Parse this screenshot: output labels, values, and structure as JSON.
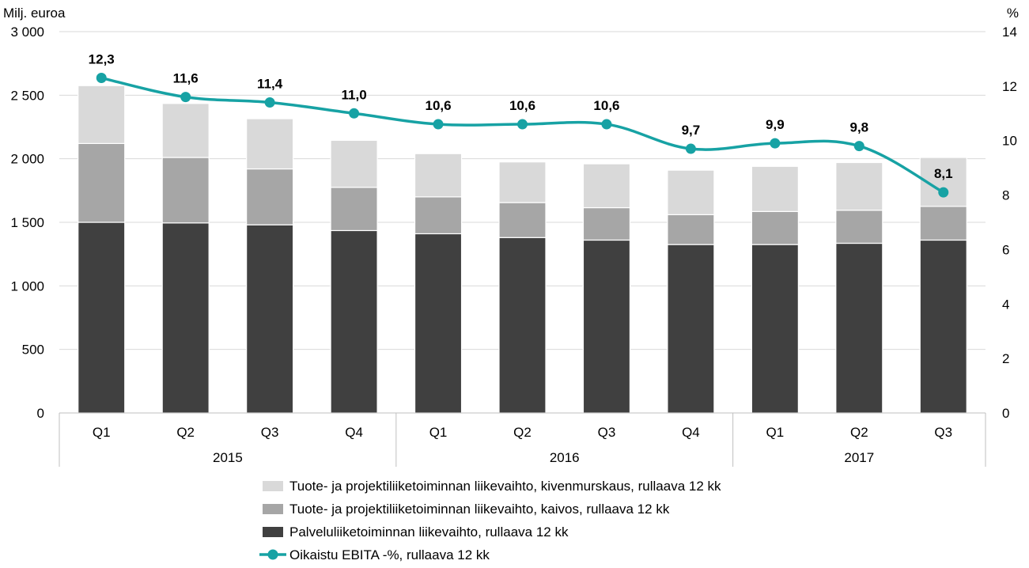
{
  "chart_data": {
    "type": "bar",
    "stacked": true,
    "y_left_label": "Milj. euroa",
    "y_right_label": "%",
    "y_left_ticks": [
      "0",
      "500",
      "1 000",
      "1 500",
      "2 000",
      "2 500",
      "3 000"
    ],
    "y_right_ticks": [
      "0",
      "2",
      "4",
      "6",
      "8",
      "10",
      "12",
      "14"
    ],
    "ylim_left": [
      0,
      3000
    ],
    "ylim_right": [
      0,
      14
    ],
    "categories": [
      "Q1",
      "Q2",
      "Q3",
      "Q4",
      "Q1",
      "Q2",
      "Q3",
      "Q4",
      "Q1",
      "Q2",
      "Q3"
    ],
    "year_groups": [
      {
        "label": "2015",
        "count": 4
      },
      {
        "label": "2016",
        "count": 4
      },
      {
        "label": "2017",
        "count": 3
      }
    ],
    "series": [
      {
        "name": "Palveluliiketoiminnan liikevaihto, rullaava 12 kk",
        "kind": "bar",
        "color": "#404040",
        "values": [
          1500,
          1495,
          1480,
          1435,
          1410,
          1380,
          1360,
          1325,
          1325,
          1335,
          1360
        ]
      },
      {
        "name": "Tuote- ja projektiliiketoiminnan liikevaihto, kaivos, rullaava 12 kk",
        "kind": "bar",
        "color": "#a6a6a6",
        "values": [
          620,
          515,
          440,
          340,
          290,
          275,
          255,
          235,
          260,
          260,
          265
        ]
      },
      {
        "name": "Tuote- ja projektiliiketoiminnan liikevaihto, kivenmurskaus, rullaava 12 kk",
        "kind": "bar",
        "color": "#d9d9d9",
        "values": [
          455,
          425,
          395,
          370,
          340,
          320,
          345,
          350,
          355,
          375,
          385
        ]
      },
      {
        "name": "Oikaistu EBITA -%, rullaava 12 kk",
        "kind": "line",
        "axis": "right",
        "color": "#17a2a4",
        "values": [
          12.3,
          11.6,
          11.4,
          11.0,
          10.6,
          10.6,
          10.6,
          9.7,
          9.9,
          9.8,
          8.1
        ],
        "labels": [
          "12,3",
          "11,6",
          "11,4",
          "11,0",
          "10,6",
          "10,6",
          "10,6",
          "9,7",
          "9,9",
          "9,8",
          "8,1"
        ]
      }
    ],
    "legend_order": [
      2,
      1,
      0,
      3
    ],
    "legend_position": "bottom",
    "grid": true
  }
}
